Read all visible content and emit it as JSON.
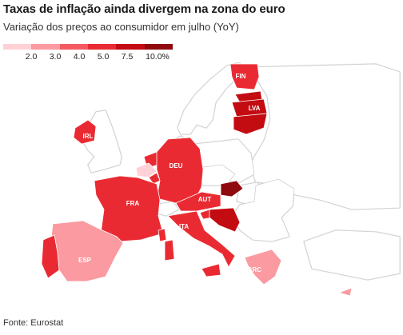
{
  "title": "Taxas de inflação ainda divergem na zona do euro",
  "subtitle": "Variação dos preços ao consumidor em julho (YoY)",
  "legend": {
    "ticks": [
      "2.0",
      "3.0",
      "4.0",
      "5.0",
      "7.5",
      "10.0%"
    ],
    "colors": [
      "#ffd1d6",
      "#fb9aa0",
      "#f55a62",
      "#ea2a32",
      "#c30b12",
      "#8e0a0e"
    ]
  },
  "labels": {
    "fin": "FIN",
    "lva": "LVA",
    "irl": "IRL",
    "deu": "DEU",
    "fra": "FRA",
    "aut": "AUT",
    "ita": "ITA",
    "esp": "ESP",
    "grc": "GRC"
  },
  "source": "Fonte: Eurostat"
}
